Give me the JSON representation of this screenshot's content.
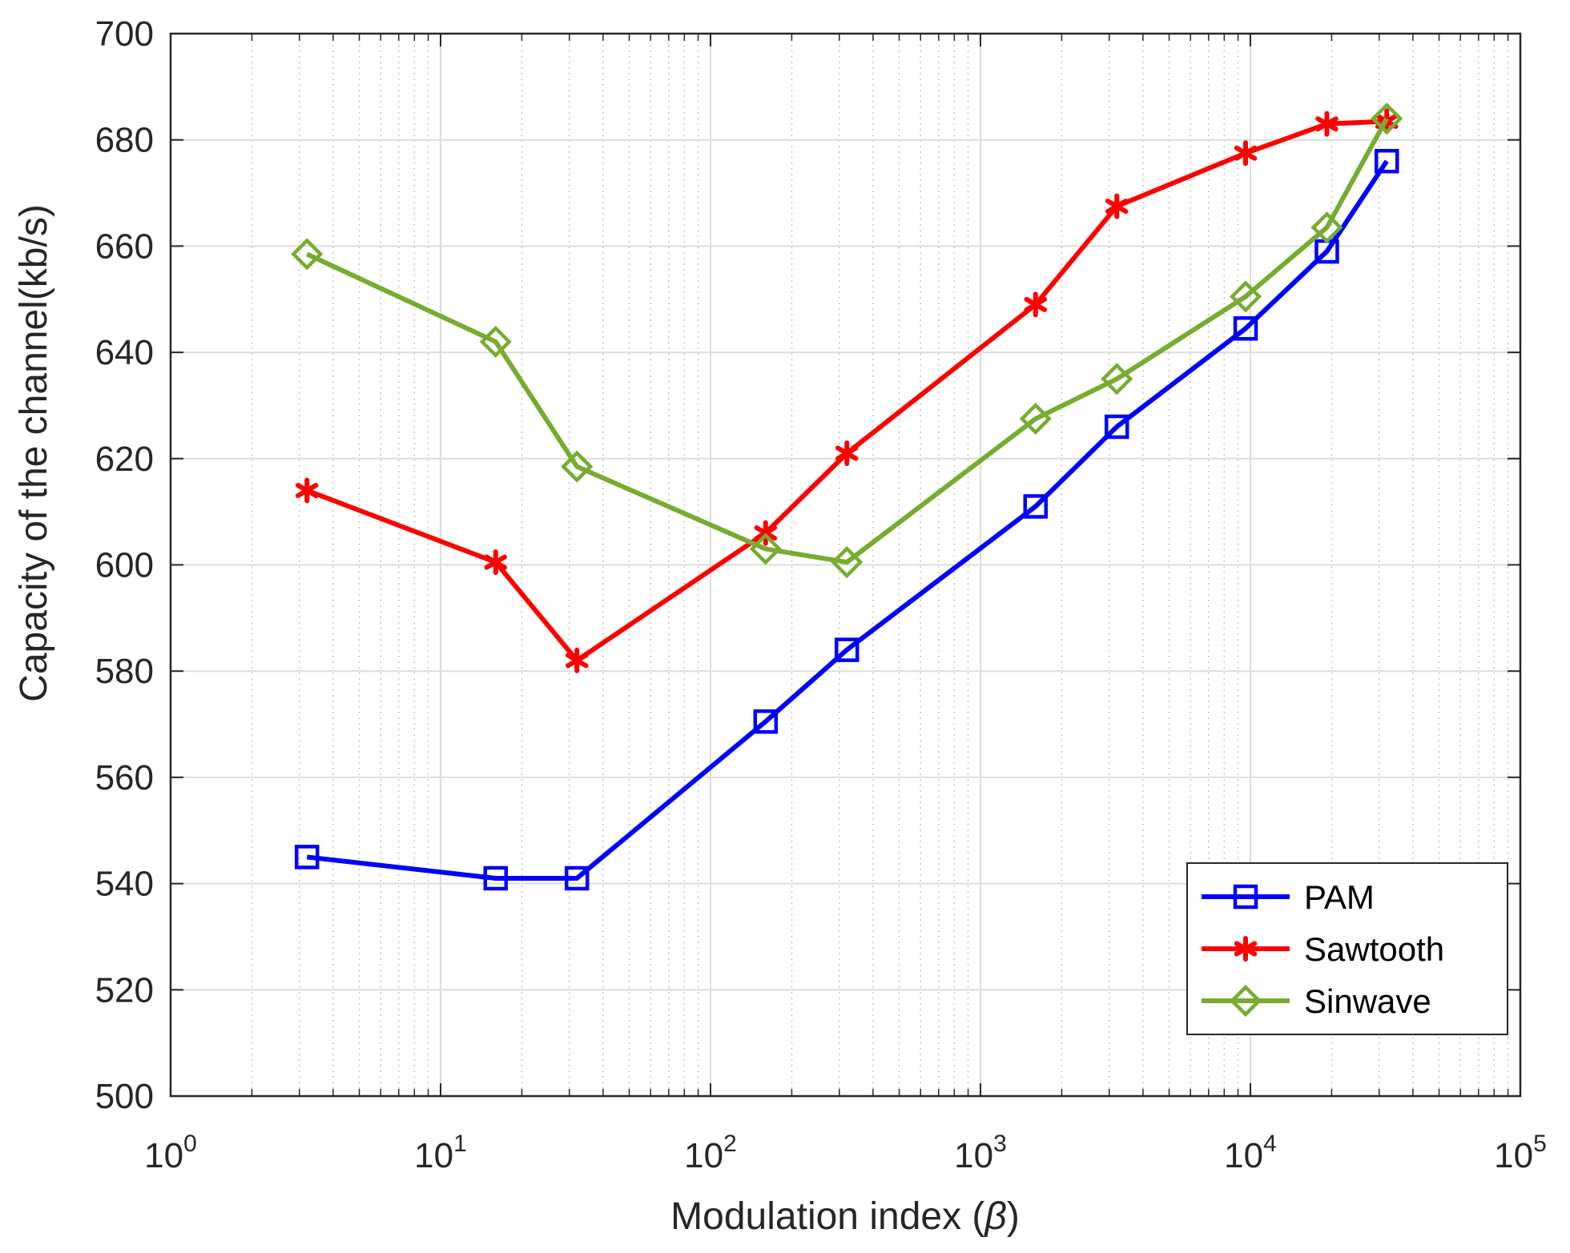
{
  "chart_data": {
    "type": "line",
    "title": "",
    "xlabel": "Modulation index (",
    "xlabel_symbol": "β",
    "xlabel_suffix": ")",
    "ylabel": "Capacity of the channel(kb/s)",
    "xscale": "log",
    "xlim": [
      1,
      100000
    ],
    "ylim": [
      500,
      700
    ],
    "x_ticks": [
      {
        "base": "10",
        "exp": "0",
        "value": 1
      },
      {
        "base": "10",
        "exp": "1",
        "value": 10
      },
      {
        "base": "10",
        "exp": "2",
        "value": 100
      },
      {
        "base": "10",
        "exp": "3",
        "value": 1000
      },
      {
        "base": "10",
        "exp": "4",
        "value": 10000
      },
      {
        "base": "10",
        "exp": "5",
        "value": 100000
      }
    ],
    "y_ticks": [
      "500",
      "520",
      "540",
      "560",
      "580",
      "600",
      "620",
      "640",
      "660",
      "680",
      "700"
    ],
    "grid": true,
    "legend_position": "bottom-right",
    "series": [
      {
        "name": "PAM",
        "color": "#0000ff",
        "marker": "square",
        "x": [
          3.2,
          16,
          32,
          160,
          320,
          1600,
          3200,
          9600,
          19200,
          32000
        ],
        "y": [
          545,
          541,
          541,
          570.5,
          584,
          611,
          626,
          644.5,
          659,
          676
        ]
      },
      {
        "name": "Sawtooth",
        "color": "#ff0000",
        "marker": "asterisk",
        "x": [
          3.2,
          16,
          32,
          160,
          320,
          1600,
          3200,
          9600,
          19200,
          32000
        ],
        "y": [
          614,
          600.5,
          582,
          606,
          621,
          649,
          667.5,
          677.5,
          683,
          683.5
        ]
      },
      {
        "name": "Sinwave",
        "color": "#77ac30",
        "marker": "diamond",
        "x": [
          3.2,
          16,
          32,
          160,
          320,
          1600,
          3200,
          9600,
          19200,
          32000
        ],
        "y": [
          658.5,
          642,
          618.5,
          603,
          600.5,
          627.5,
          635,
          650.5,
          663.5,
          684
        ]
      }
    ]
  }
}
